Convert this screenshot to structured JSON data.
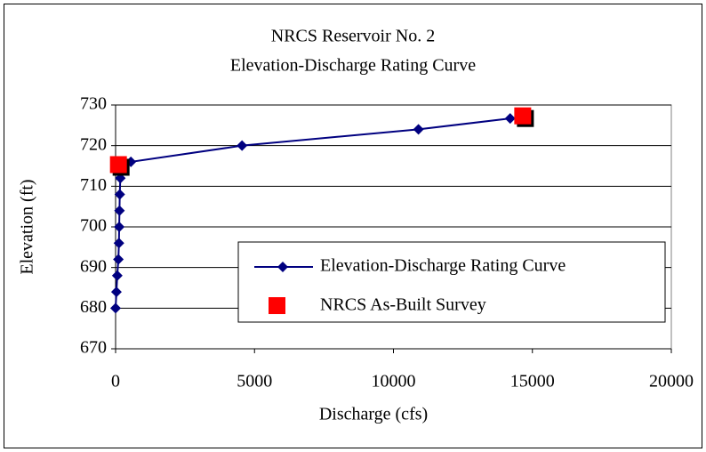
{
  "chart_data": {
    "type": "scatter",
    "title": "NRCS Reservoir No. 2",
    "subtitle": "Elevation-Discharge Rating Curve",
    "x_label": "Discharge (cfs)",
    "y_label": "Elevation (ft)",
    "xlim": [
      0,
      20000
    ],
    "xticks": [
      0,
      5000,
      10000,
      15000,
      20000
    ],
    "ylim": [
      670,
      730
    ],
    "yticks": [
      670,
      680,
      690,
      700,
      710,
      720,
      730
    ],
    "grid": true,
    "legend": "lower right",
    "series": [
      {
        "name": "Elevation-Discharge Rating Curve",
        "color": "#000080",
        "marker": "diamond",
        "line": true,
        "x": [
          0,
          30,
          60,
          100,
          120,
          130,
          140,
          150,
          170,
          550,
          4550,
          10900,
          14200
        ],
        "values": [
          680,
          684,
          688,
          692,
          696,
          700,
          704,
          708,
          712,
          716,
          720,
          724,
          726.7
        ]
      },
      {
        "name": "NRCS As-Built Survey",
        "color": "#ff0000",
        "marker": "square",
        "line": false,
        "x": [
          150,
          14700
        ],
        "values": [
          715,
          727
        ]
      }
    ]
  }
}
